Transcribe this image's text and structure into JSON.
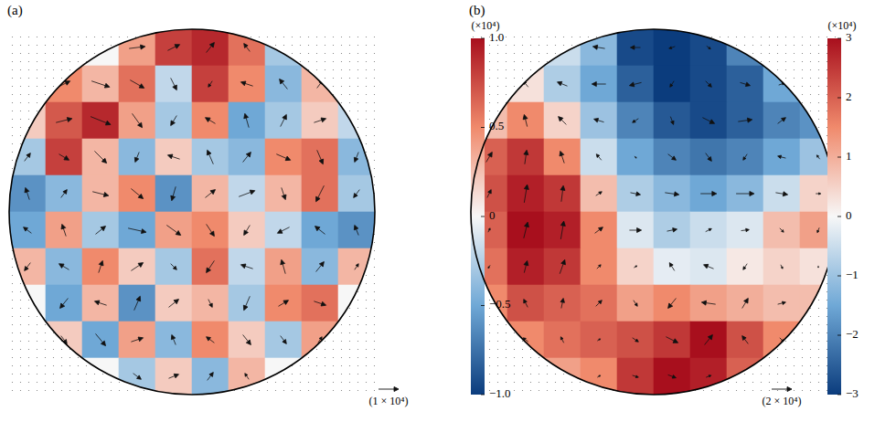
{
  "chart_data": [
    {
      "type": "heatmap",
      "title": "(a)",
      "tick_labels": false,
      "x": [
        -0.9,
        -0.7,
        -0.5,
        -0.3,
        -0.1,
        0.1,
        0.3,
        0.5,
        0.7,
        0.9
      ],
      "y": [
        0.9,
        0.7,
        0.5,
        0.3,
        0.1,
        -0.1,
        -0.3,
        -0.5,
        -0.7,
        -0.9
      ],
      "xlim": [
        -1,
        1
      ],
      "ylim": [
        -1,
        1
      ],
      "cells": [
        [
          0,
          0,
          0,
          0.4,
          0.8,
          0.9,
          0.6,
          -0.3,
          0,
          0
        ],
        [
          0,
          0.5,
          0.3,
          0.6,
          -0.2,
          0.8,
          0.5,
          -0.4,
          0.3,
          0
        ],
        [
          0.2,
          0.7,
          0.9,
          0.4,
          -0.3,
          0.5,
          -0.5,
          -0.3,
          0.2,
          -0.2
        ],
        [
          -0.3,
          0.8,
          0.3,
          -0.4,
          0.2,
          -0.3,
          -0.4,
          0.5,
          0.6,
          -0.4
        ],
        [
          -0.6,
          -0.4,
          0.3,
          0.5,
          -0.6,
          0.3,
          -0.2,
          0.3,
          0.6,
          -0.3
        ],
        [
          -0.5,
          0.4,
          -0.3,
          -0.5,
          0.4,
          0.5,
          0.2,
          -0.2,
          -0.5,
          -0.6
        ],
        [
          0.3,
          -0.4,
          0.5,
          0.2,
          -0.3,
          0.6,
          -0.2,
          0.4,
          -0.4,
          0.3
        ],
        [
          0,
          -0.5,
          0.3,
          -0.6,
          0.2,
          0.3,
          -0.3,
          0.5,
          0.6,
          0
        ],
        [
          0,
          0.2,
          -0.5,
          0.4,
          -0.4,
          0.5,
          0.2,
          -0.3,
          0.4,
          0
        ],
        [
          0,
          0,
          0,
          -0.3,
          0.2,
          -0.4,
          0.3,
          0,
          0,
          0
        ]
      ],
      "u": [
        [
          0,
          0,
          0.5,
          0.8,
          0.6,
          0.4,
          -0.3,
          -0.5,
          0,
          0
        ],
        [
          0,
          0.6,
          0.9,
          0.7,
          0.3,
          -0.2,
          -0.6,
          -0.4,
          0.3,
          0
        ],
        [
          0.4,
          0.8,
          1.0,
          0.5,
          -0.3,
          -0.5,
          -0.2,
          0.3,
          0.6,
          0.2
        ],
        [
          0.3,
          0.5,
          0.6,
          -0.2,
          -0.6,
          -0.3,
          0.4,
          0.7,
          0.3,
          -0.2
        ],
        [
          -0.2,
          0.3,
          0.8,
          0.6,
          -0.2,
          0.5,
          0.8,
          0.2,
          -0.4,
          -0.3
        ],
        [
          -0.4,
          -0.2,
          0.5,
          0.9,
          0.7,
          0.4,
          -0.3,
          -0.6,
          -0.5,
          -0.2
        ],
        [
          -0.3,
          -0.5,
          0.2,
          0.6,
          0.3,
          -0.4,
          -0.6,
          -0.2,
          0.4,
          0.2
        ],
        [
          0,
          -0.4,
          -0.6,
          0.3,
          0.5,
          0.2,
          -0.3,
          0.5,
          0.6,
          0
        ],
        [
          0,
          0.3,
          0.5,
          0.6,
          -0.2,
          -0.4,
          0.4,
          0.3,
          0.2,
          0
        ],
        [
          0,
          0,
          0,
          0.4,
          0.5,
          0.3,
          -0.2,
          0,
          0,
          0
        ]
      ],
      "v": [
        [
          0,
          0,
          -0.2,
          0.1,
          0.3,
          0.5,
          0.4,
          0.2,
          0,
          0
        ],
        [
          0,
          0.3,
          -0.3,
          -0.4,
          -0.6,
          -0.3,
          0.2,
          0.5,
          0.4,
          0
        ],
        [
          0.5,
          0.2,
          -0.4,
          -0.7,
          -0.5,
          0.3,
          0.7,
          0.6,
          0.2,
          -0.3
        ],
        [
          0.4,
          -0.3,
          -0.6,
          -0.5,
          0.2,
          0.7,
          0.5,
          -0.3,
          -0.7,
          -0.5
        ],
        [
          0.6,
          0.4,
          -0.2,
          -0.5,
          -0.7,
          0.4,
          0.3,
          -0.6,
          -0.8,
          -0.4
        ],
        [
          0.3,
          0.6,
          0.4,
          -0.2,
          -0.5,
          -0.6,
          -0.5,
          -0.3,
          0.4,
          0.5
        ],
        [
          -0.4,
          0.3,
          0.6,
          0.4,
          -0.3,
          -0.6,
          0.2,
          0.7,
          0.5,
          0.3
        ],
        [
          0,
          -0.5,
          0.2,
          0.7,
          0.4,
          -0.4,
          -0.7,
          0.3,
          -0.2,
          0
        ],
        [
          0,
          -0.4,
          -0.6,
          0.2,
          0.5,
          0.3,
          -0.5,
          -0.4,
          0.3,
          0
        ],
        [
          0,
          0,
          0,
          -0.3,
          0.2,
          0.4,
          0.3,
          0,
          0,
          0
        ]
      ],
      "colorbar": {
        "title": "(×10⁴)",
        "range": [
          -1,
          1
        ],
        "ticks": [
          {
            "value": 1,
            "label": "1.0"
          },
          {
            "value": 0.5,
            "label": "0.5"
          },
          0,
          {
            "value": -0.5,
            "label": "−0.5"
          },
          {
            "value": -1,
            "label": "−1.0"
          }
        ]
      },
      "reference_vector": {
        "value": 1,
        "label": "(1 × 10⁴)"
      }
    },
    {
      "type": "heatmap",
      "title": "(b)",
      "tick_labels": false,
      "x": [
        -0.9,
        -0.7,
        -0.5,
        -0.3,
        -0.1,
        0.1,
        0.3,
        0.5,
        0.7,
        0.9
      ],
      "y": [
        0.9,
        0.7,
        0.5,
        0.3,
        0.1,
        -0.1,
        -0.3,
        -0.5,
        -0.7,
        -0.9
      ],
      "xlim": [
        -1,
        1
      ],
      "ylim": [
        -1,
        1
      ],
      "cells": [
        [
          0,
          0,
          -0.5,
          -1.2,
          -2.8,
          -3,
          -2.8,
          -2,
          0,
          0
        ],
        [
          0,
          0.3,
          -0.8,
          -1.5,
          -2.5,
          -3,
          -2.8,
          -2.5,
          -1.5,
          0
        ],
        [
          0.8,
          1.5,
          0.5,
          -1,
          -2,
          -2.6,
          -2.8,
          -2.5,
          -2,
          -1.8
        ],
        [
          2,
          2.5,
          1.5,
          -0.5,
          -1.5,
          -2,
          -2.2,
          -2,
          -1.5,
          -1
        ],
        [
          2.2,
          2.8,
          2.5,
          0.8,
          -0.8,
          -1.2,
          -1.5,
          -1.2,
          -0.5,
          0.5
        ],
        [
          2,
          3,
          2.8,
          1.5,
          -0.3,
          -0.8,
          -0.5,
          -0.3,
          0.8,
          1.2
        ],
        [
          1.8,
          2.8,
          2.5,
          1.5,
          0.5,
          -0.2,
          -0.3,
          0.2,
          0.5,
          0.3
        ],
        [
          1.5,
          2.2,
          2,
          1.8,
          1.2,
          1.5,
          1.2,
          1,
          0.8,
          0.8
        ],
        [
          0.8,
          1.5,
          1.8,
          2,
          2.2,
          2.5,
          3,
          2.2,
          1.5,
          0.5
        ],
        [
          0,
          0.8,
          1.2,
          1.5,
          2.5,
          3,
          2.8,
          2,
          0.8,
          0
        ]
      ],
      "u": [
        [
          0,
          0,
          -0.8,
          -1.2,
          -1.0,
          -0.6,
          0.4,
          0.8,
          0,
          0
        ],
        [
          0,
          -0.5,
          -1.0,
          -1.4,
          -1.2,
          -0.4,
          0.6,
          1.0,
          0.6,
          0
        ],
        [
          0.4,
          -0.3,
          -0.8,
          -1.0,
          -0.6,
          0.3,
          1.2,
          1.4,
          0.8,
          0.3
        ],
        [
          0.6,
          0.2,
          -0.4,
          -0.5,
          0.2,
          0.8,
          0.6,
          -0.4,
          -0.8,
          -0.3
        ],
        [
          0.4,
          0.3,
          0.2,
          0.6,
          1.0,
          1.4,
          1.6,
          1.8,
          1.2,
          0.5
        ],
        [
          0.2,
          0.4,
          0.3,
          0.8,
          1.2,
          1.0,
          0.6,
          0.8,
          0.4,
          -0.2
        ],
        [
          -0.2,
          0.3,
          0.5,
          0.4,
          0.3,
          -0.5,
          -1.0,
          -0.4,
          0.2,
          0
        ],
        [
          0,
          -0.4,
          0.2,
          0.6,
          0.4,
          -0.8,
          -1.4,
          0.6,
          0.8,
          0
        ],
        [
          0,
          -0.5,
          -0.3,
          0.3,
          0.6,
          1.2,
          0.8,
          -0.6,
          0.4,
          0
        ],
        [
          0,
          0,
          0,
          0.3,
          0.6,
          0.8,
          0.5,
          0,
          0,
          0
        ]
      ],
      "v": [
        [
          0,
          0,
          0.3,
          0.2,
          0,
          -0.2,
          -0.3,
          -0.4,
          0,
          0
        ],
        [
          0,
          0.6,
          0.4,
          0,
          -0.3,
          -0.6,
          -0.6,
          -0.3,
          0.2,
          0
        ],
        [
          0.8,
          1.2,
          0.8,
          0.3,
          -0.4,
          -0.8,
          -0.6,
          0.2,
          0.6,
          0.4
        ],
        [
          1.0,
          1.4,
          1.2,
          0.6,
          -0.2,
          -0.6,
          -0.8,
          -0.6,
          0.2,
          0.4
        ],
        [
          0.8,
          1.8,
          1.6,
          0.4,
          -0.2,
          -0.2,
          0,
          0,
          -0.2,
          0
        ],
        [
          0.4,
          1.6,
          1.8,
          0.6,
          0,
          0.2,
          0.3,
          0.1,
          -0.4,
          -0.5
        ],
        [
          -0.3,
          1.2,
          1.4,
          0.4,
          0.2,
          0.8,
          0.4,
          -0.6,
          -0.4,
          -0.2
        ],
        [
          0,
          0.8,
          1.0,
          0.6,
          -0.6,
          -1.0,
          0.2,
          1.0,
          0.2,
          0
        ],
        [
          0,
          0.4,
          0.6,
          0.2,
          -0.4,
          -0.6,
          1.0,
          0.8,
          -0.4,
          0
        ],
        [
          0,
          0,
          0,
          0.2,
          -0.2,
          -0.3,
          0.2,
          0,
          0,
          0
        ]
      ],
      "colorbar": {
        "title": "(×10⁴)",
        "range": [
          -3,
          3
        ],
        "ticks": [
          3,
          2,
          1,
          0,
          {
            "value": -1,
            "label": "−1"
          },
          {
            "value": -2,
            "label": "−2"
          },
          {
            "value": -3,
            "label": "−3"
          }
        ]
      },
      "reference_vector": {
        "value": 2,
        "label": "(2 × 10⁴)"
      }
    }
  ]
}
